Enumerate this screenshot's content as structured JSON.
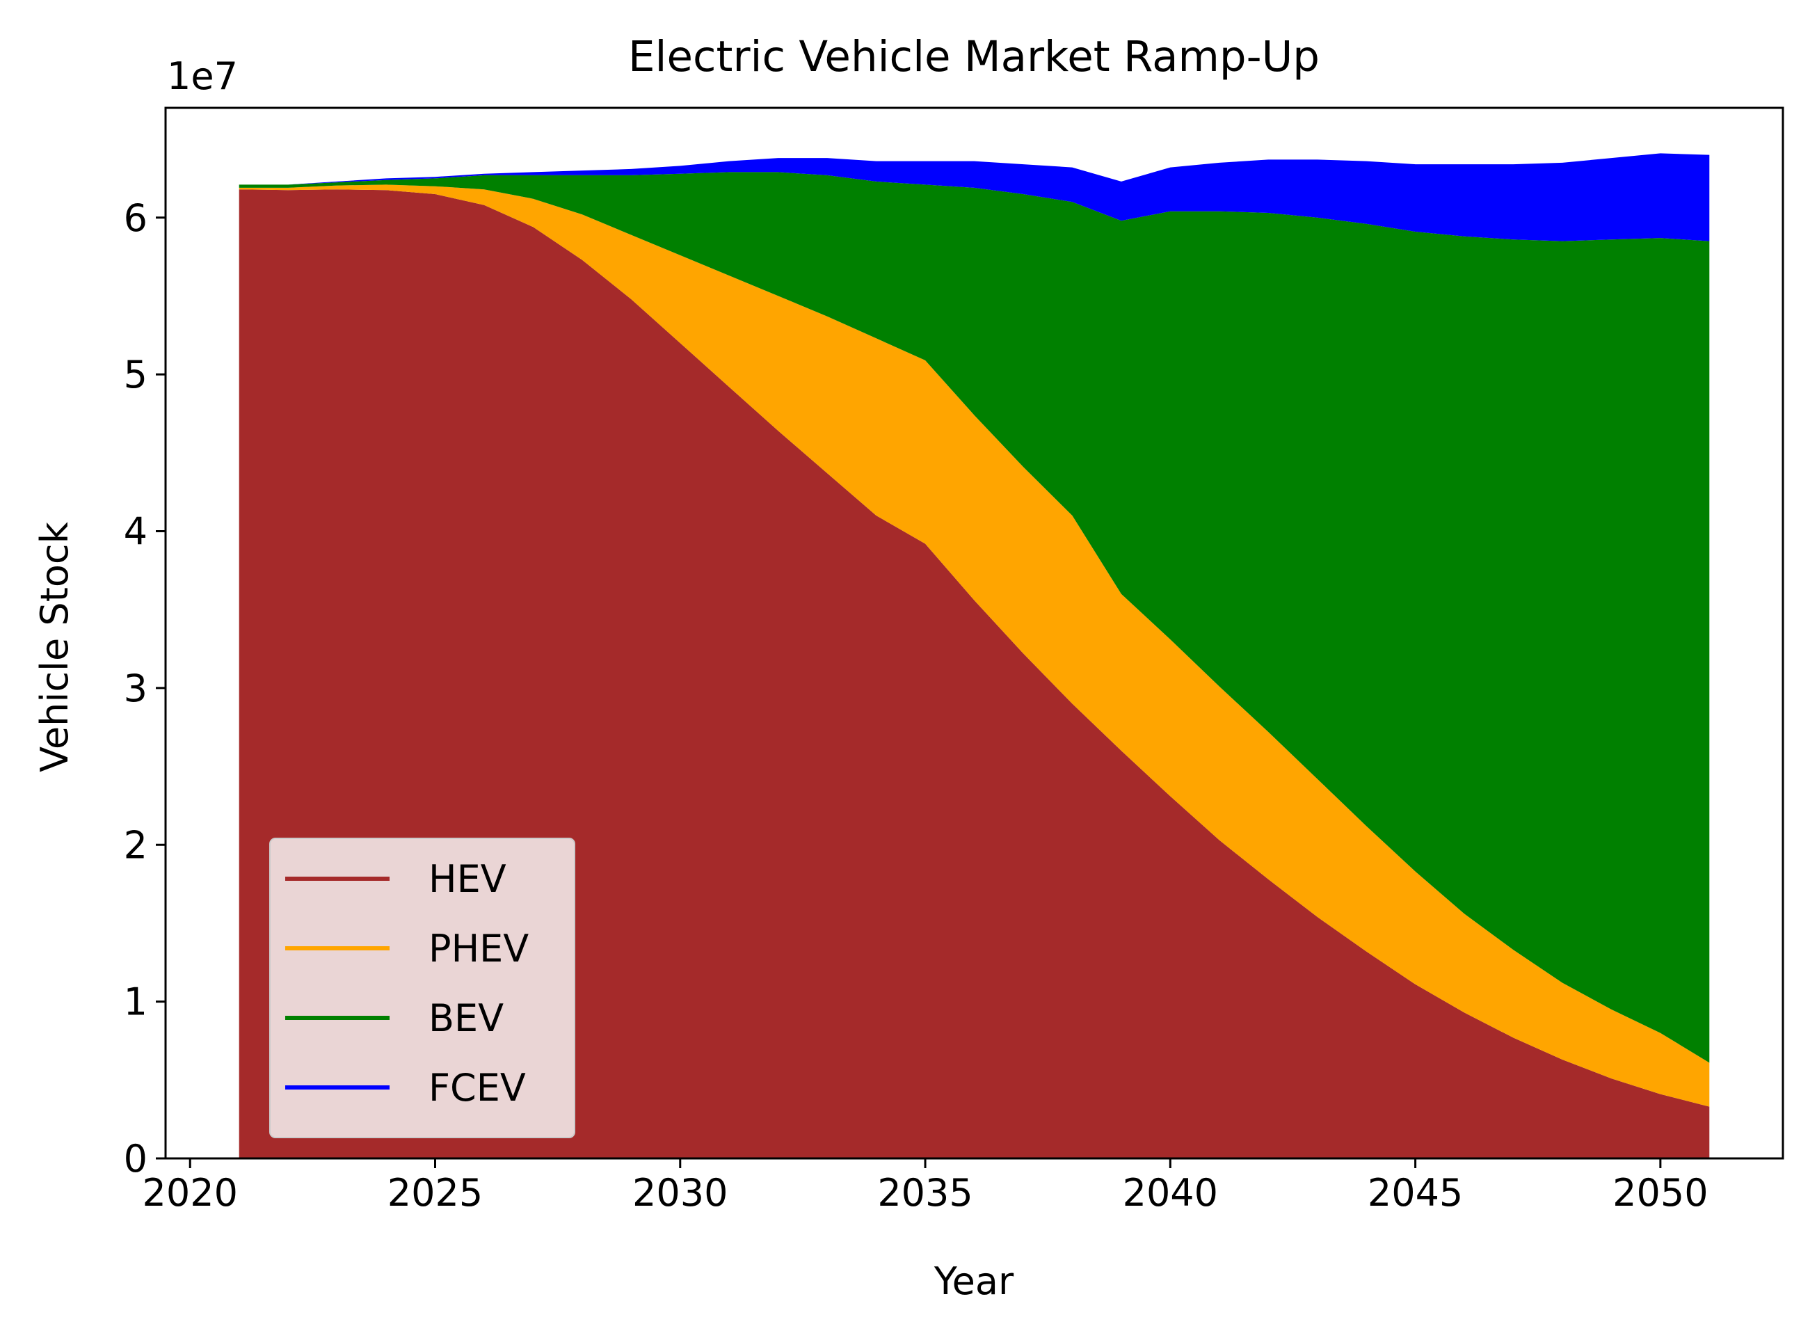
{
  "chart_data": {
    "type": "area",
    "stacked": true,
    "title": "Electric Vehicle Market Ramp-Up",
    "xlabel": "Year",
    "ylabel": "Vehicle Stock",
    "y_offset_label": "1e7",
    "xlim": [
      2019.5,
      2052.5
    ],
    "ylim": [
      0,
      6.7
    ],
    "xticks": [
      2020,
      2025,
      2030,
      2035,
      2040,
      2045,
      2050
    ],
    "yticks": [
      0,
      1,
      2,
      3,
      4,
      5,
      6
    ],
    "grid": false,
    "legend_position": "lower-left",
    "x": [
      2021,
      2022,
      2023,
      2024,
      2025,
      2026,
      2027,
      2028,
      2029,
      2030,
      2031,
      2032,
      2033,
      2034,
      2035,
      2036,
      2037,
      2038,
      2039,
      2040,
      2041,
      2042,
      2043,
      2044,
      2045,
      2046,
      2047,
      2048,
      2049,
      2050,
      2051
    ],
    "series": [
      {
        "name": "HEV",
        "color": "#a52a2a",
        "values": [
          6.18,
          6.175,
          6.18,
          6.175,
          6.15,
          6.08,
          5.94,
          5.73,
          5.48,
          5.2,
          4.92,
          4.64,
          4.37,
          4.1,
          3.92,
          3.56,
          3.22,
          2.9,
          2.6,
          2.31,
          2.03,
          1.78,
          1.54,
          1.32,
          1.11,
          0.93,
          0.77,
          0.63,
          0.51,
          0.41,
          0.33
        ]
      },
      {
        "name": "PHEV",
        "color": "#ffa500",
        "values": [
          0.01,
          0.015,
          0.025,
          0.035,
          0.05,
          0.1,
          0.18,
          0.29,
          0.41,
          0.56,
          0.71,
          0.86,
          1.0,
          1.13,
          1.17,
          1.18,
          1.19,
          1.2,
          1.0,
          1.0,
          0.98,
          0.94,
          0.88,
          0.8,
          0.72,
          0.63,
          0.56,
          0.49,
          0.44,
          0.39,
          0.28
        ]
      },
      {
        "name": "BEV",
        "color": "#008000",
        "values": [
          0.02,
          0.02,
          0.02,
          0.03,
          0.05,
          0.09,
          0.15,
          0.25,
          0.38,
          0.52,
          0.66,
          0.79,
          0.9,
          1.0,
          1.12,
          1.45,
          1.74,
          2.0,
          2.38,
          2.73,
          3.03,
          3.31,
          3.58,
          3.84,
          4.08,
          4.32,
          4.53,
          4.73,
          4.91,
          5.07,
          5.24
        ]
      },
      {
        "name": "FCEV",
        "color": "#0000ff",
        "values": [
          0.0,
          0.0,
          0.005,
          0.01,
          0.01,
          0.01,
          0.02,
          0.03,
          0.04,
          0.05,
          0.07,
          0.09,
          0.11,
          0.13,
          0.15,
          0.17,
          0.19,
          0.22,
          0.25,
          0.28,
          0.31,
          0.34,
          0.37,
          0.4,
          0.43,
          0.46,
          0.48,
          0.5,
          0.52,
          0.54,
          0.55
        ]
      }
    ]
  }
}
